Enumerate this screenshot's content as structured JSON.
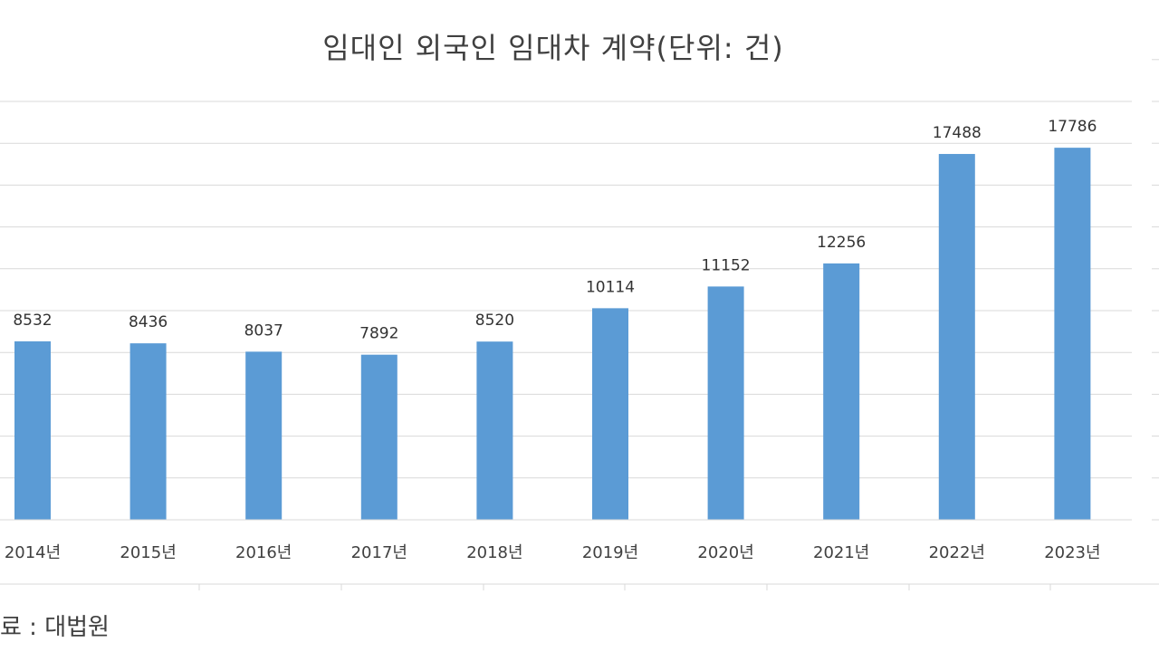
{
  "chart_data": {
    "type": "bar",
    "title": "임대인 외국인 임대차 계약(단위: 건)",
    "categories": [
      "2014년",
      "2015년",
      "2016년",
      "2017년",
      "2018년",
      "2019년",
      "2020년",
      "2021년",
      "2022년",
      "2023년"
    ],
    "values": [
      8532,
      8436,
      8037,
      7892,
      8520,
      10114,
      11152,
      12256,
      17488,
      17786
    ],
    "ylim": [
      0,
      20000
    ],
    "grid": true,
    "color": "#5b9bd5"
  },
  "source": "료 : 대법원"
}
